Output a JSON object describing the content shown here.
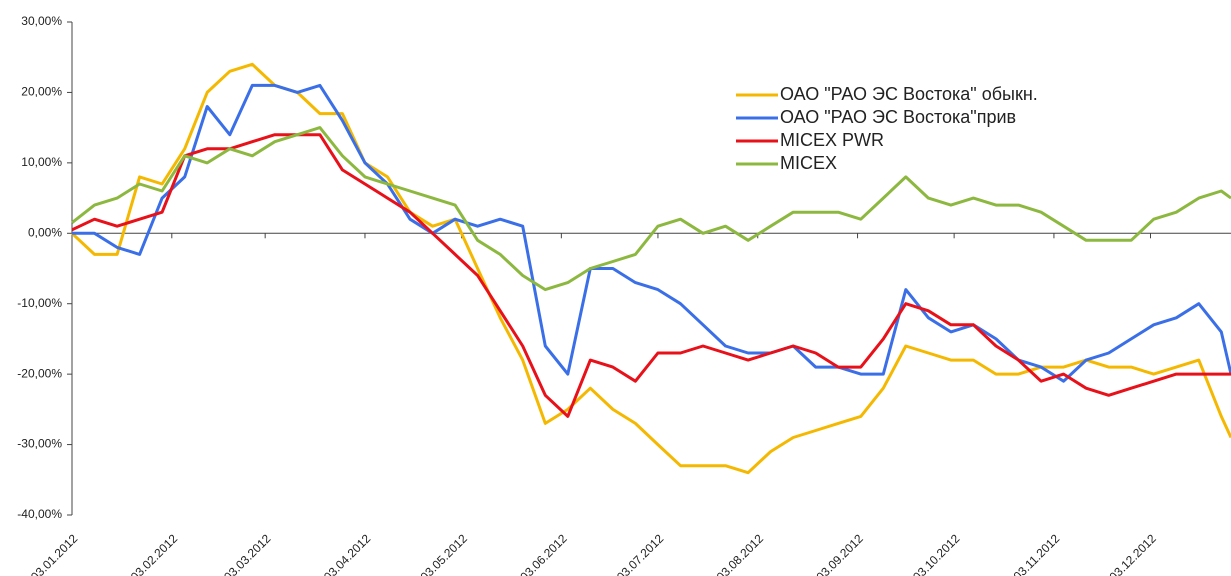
{
  "chart_data": {
    "type": "line",
    "x": [
      "2012-01-03",
      "2012-01-10",
      "2012-01-17",
      "2012-01-24",
      "2012-01-31",
      "2012-02-07",
      "2012-02-14",
      "2012-02-21",
      "2012-02-28",
      "2012-03-06",
      "2012-03-13",
      "2012-03-20",
      "2012-03-27",
      "2012-04-03",
      "2012-04-10",
      "2012-04-17",
      "2012-04-24",
      "2012-05-01",
      "2012-05-08",
      "2012-05-15",
      "2012-05-22",
      "2012-05-29",
      "2012-06-05",
      "2012-06-12",
      "2012-06-19",
      "2012-06-26",
      "2012-07-03",
      "2012-07-10",
      "2012-07-17",
      "2012-07-24",
      "2012-07-31",
      "2012-08-07",
      "2012-08-14",
      "2012-08-21",
      "2012-08-28",
      "2012-09-04",
      "2012-09-11",
      "2012-09-18",
      "2012-09-25",
      "2012-10-02",
      "2012-10-09",
      "2012-10-16",
      "2012-10-23",
      "2012-10-30",
      "2012-11-06",
      "2012-11-13",
      "2012-11-20",
      "2012-11-27",
      "2012-12-04",
      "2012-12-11",
      "2012-12-18",
      "2012-12-25",
      "2012-12-28"
    ],
    "series": [
      {
        "name": "ОАО \"РАО ЭС Востока\" обыкн.",
        "color": "#f5b800",
        "values": [
          0,
          -3,
          -3,
          8,
          7,
          12,
          20,
          23,
          24,
          21,
          20,
          17,
          17,
          10,
          8,
          3,
          1,
          2,
          -5,
          -12,
          -18,
          -27,
          -25,
          -22,
          -25,
          -27,
          -30,
          -33,
          -33,
          -33,
          -34,
          -31,
          -29,
          -28,
          -27,
          -26,
          -22,
          -16,
          -17,
          -18,
          -18,
          -20,
          -20,
          -19,
          -19,
          -18,
          -19,
          -19,
          -20,
          -19,
          -18,
          -26,
          -29
        ]
      },
      {
        "name": "ОАО \"РАО ЭС Востока\"прив",
        "color": "#3a6fe8",
        "values": [
          0,
          0,
          -2,
          -3,
          5,
          8,
          18,
          14,
          21,
          21,
          20,
          21,
          16,
          10,
          7,
          2,
          0,
          2,
          1,
          2,
          1,
          -16,
          -20,
          -5,
          -5,
          -7,
          -8,
          -10,
          -13,
          -16,
          -17,
          -17,
          -16,
          -19,
          -19,
          -20,
          -20,
          -8,
          -12,
          -14,
          -13,
          -15,
          -18,
          -19,
          -21,
          -18,
          -17,
          -15,
          -13,
          -12,
          -10,
          -14,
          -20
        ]
      },
      {
        "name": "MICEX PWR",
        "color": "#e8111a",
        "values": [
          0.5,
          2,
          1,
          2,
          3,
          11,
          12,
          12,
          13,
          14,
          14,
          14,
          9,
          7,
          5,
          3,
          0,
          -3,
          -6,
          -11,
          -16,
          -23,
          -26,
          -18,
          -19,
          -21,
          -17,
          -17,
          -16,
          -17,
          -18,
          -17,
          -16,
          -17,
          -19,
          -19,
          -15,
          -10,
          -11,
          -13,
          -13,
          -16,
          -18,
          -21,
          -20,
          -22,
          -23,
          -22,
          -21,
          -20,
          -20,
          -20,
          -20
        ]
      },
      {
        "name": "MICEX",
        "color": "#8db840",
        "values": [
          1.5,
          4,
          5,
          7,
          6,
          11,
          10,
          12,
          11,
          13,
          14,
          15,
          11,
          8,
          7,
          6,
          5,
          4,
          -1,
          -3,
          -6,
          -8,
          -7,
          -5,
          -4,
          -3,
          1,
          2,
          0,
          1,
          -1,
          1,
          3,
          3,
          3,
          2,
          5,
          8,
          5,
          4,
          5,
          4,
          4,
          3,
          1,
          -1,
          -1,
          -1,
          2,
          3,
          5,
          6,
          5
        ]
      }
    ],
    "xlim": [
      "2012-01-03",
      "2012-12-28"
    ],
    "xticks": [
      {
        "value": "2012-01-03",
        "label": "03.01.2012"
      },
      {
        "value": "2012-02-03",
        "label": "03.02.2012"
      },
      {
        "value": "2012-03-03",
        "label": "03.03.2012"
      },
      {
        "value": "2012-04-03",
        "label": "03.04.2012"
      },
      {
        "value": "2012-05-03",
        "label": "03.05.2012"
      },
      {
        "value": "2012-06-03",
        "label": "03.06.2012"
      },
      {
        "value": "2012-07-03",
        "label": "03.07.2012"
      },
      {
        "value": "2012-08-03",
        "label": "03.08.2012"
      },
      {
        "value": "2012-09-03",
        "label": "03.09.2012"
      },
      {
        "value": "2012-10-03",
        "label": "03.10.2012"
      },
      {
        "value": "2012-11-03",
        "label": "03.11.2012"
      },
      {
        "value": "2012-12-03",
        "label": "03.12.2012"
      }
    ],
    "ylim": [
      -40,
      30
    ],
    "yticks": [
      {
        "value": -40,
        "label": "-40,00%"
      },
      {
        "value": -30,
        "label": "-30,00%"
      },
      {
        "value": -20,
        "label": "-20,00%"
      },
      {
        "value": -10,
        "label": "-10,00%"
      },
      {
        "value": 0,
        "label": "0,00%"
      },
      {
        "value": 10,
        "label": "10,00%"
      },
      {
        "value": 20,
        "label": "20,00%"
      },
      {
        "value": 30,
        "label": "30,00%"
      }
    ],
    "legend": "upper right"
  }
}
